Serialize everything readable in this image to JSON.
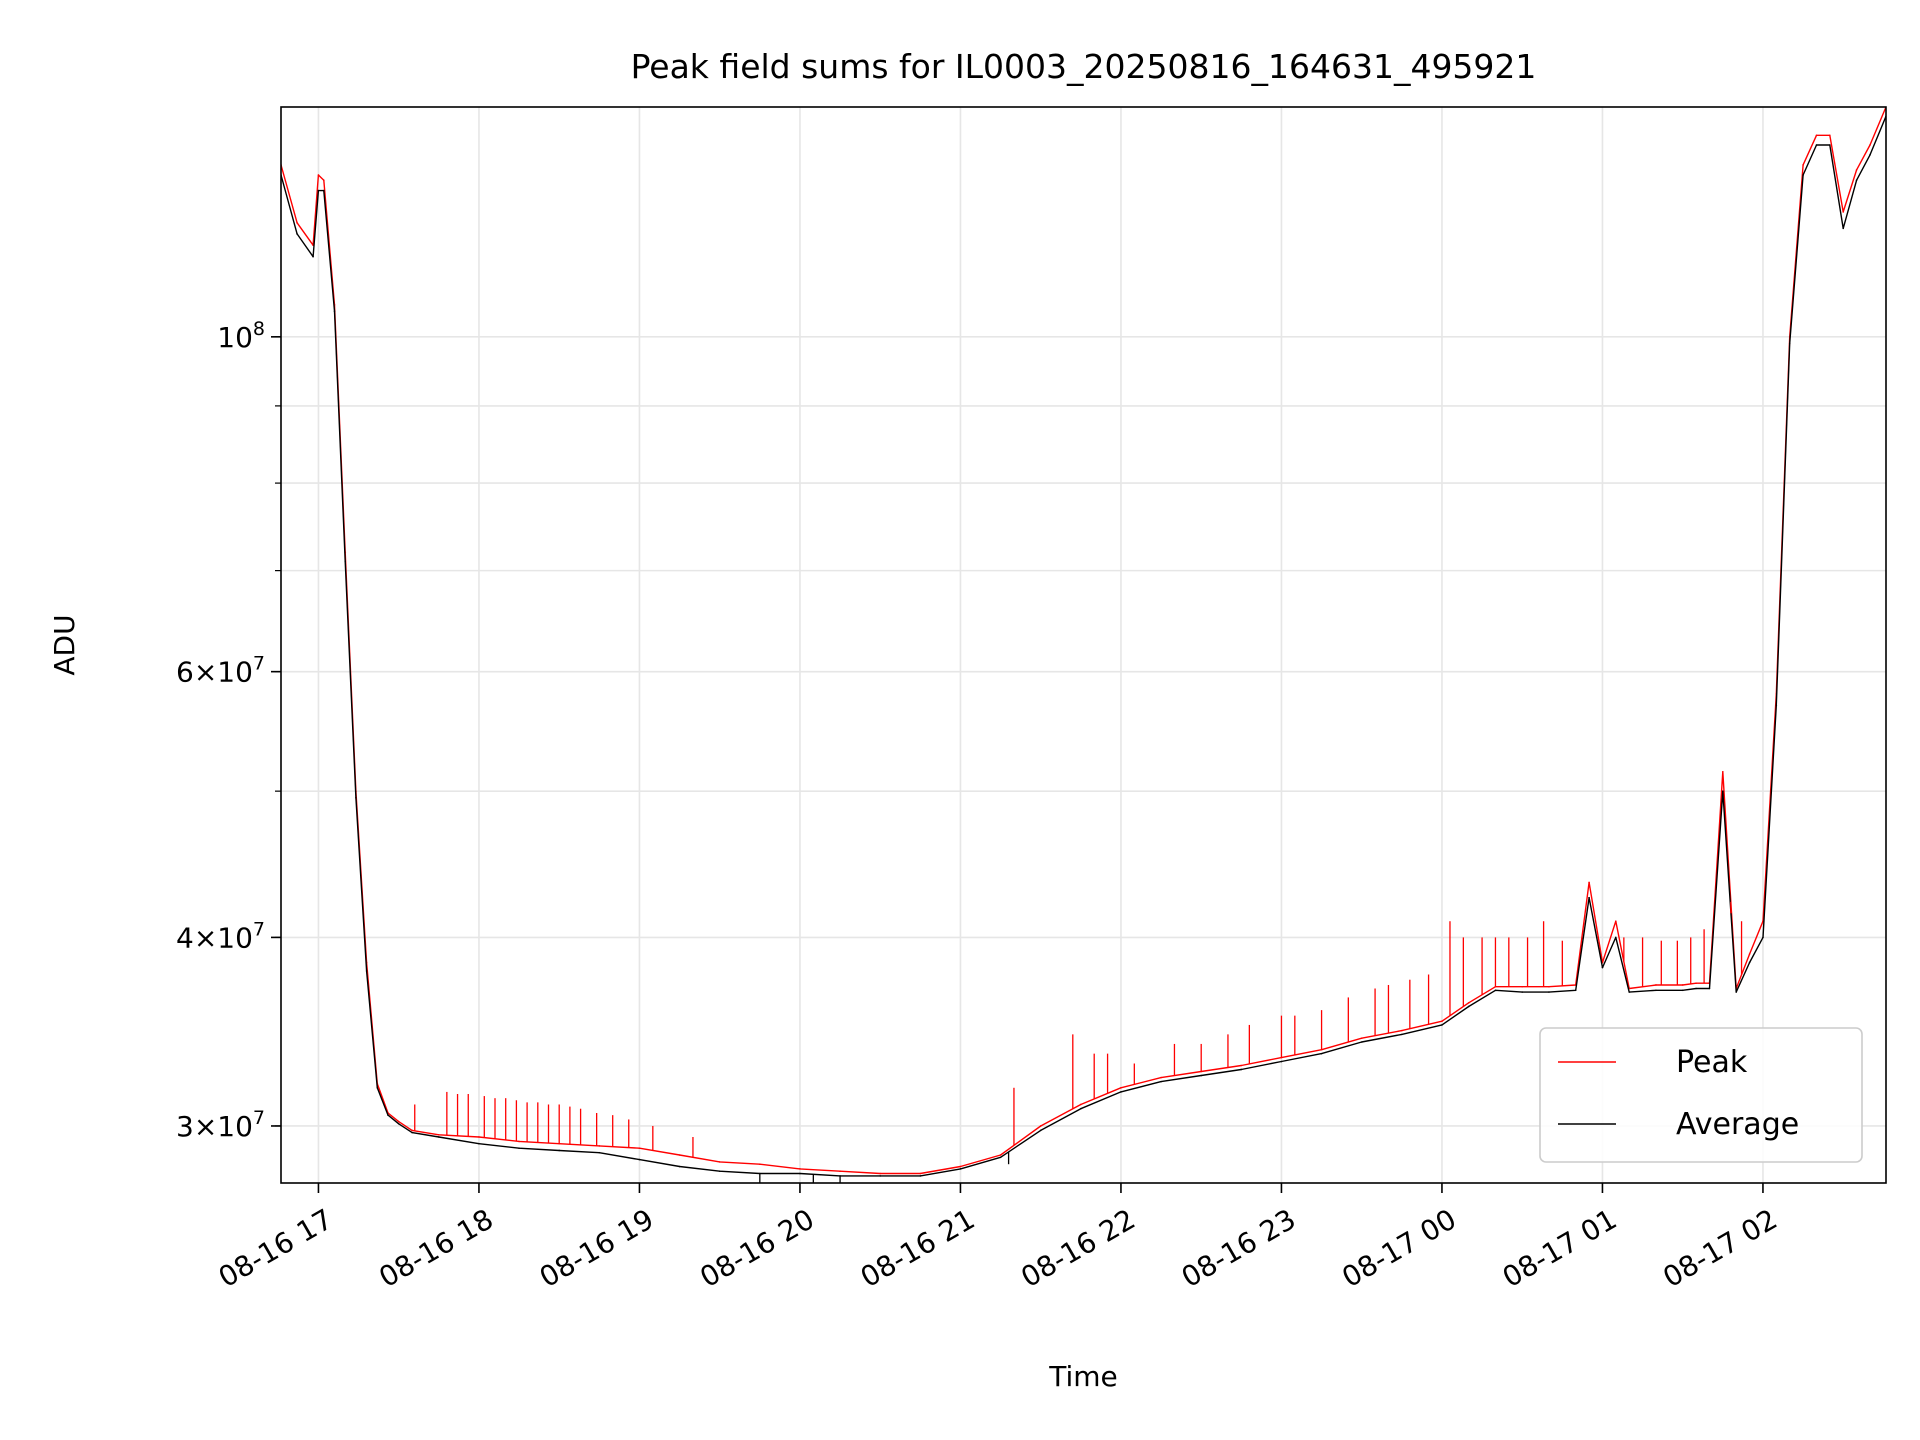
{
  "chart_data": {
    "type": "line",
    "title": "Peak field sums for IL0003_20250816_164631_495921",
    "xlabel": "Time",
    "ylabel": "ADU",
    "xlim": [
      "08-16 16:46",
      "08-17 02:46"
    ],
    "ylim": [
      27500000,
      142000000
    ],
    "yscale": "log",
    "grid": true,
    "legend_position": "lower right",
    "x_tick_labels": [
      "08-16 17",
      "08-16 18",
      "08-16 19",
      "08-16 20",
      "08-16 21",
      "08-16 22",
      "08-16 23",
      "08-17 00",
      "08-17 01",
      "08-17 02"
    ],
    "y_tick_labels": [
      {
        "value": 30000000,
        "mantissa": "3",
        "exponent": "7"
      },
      {
        "value": 40000000,
        "mantissa": "4",
        "exponent": "7"
      },
      {
        "value": 60000000,
        "mantissa": "6",
        "exponent": "7"
      },
      {
        "value": 100000000,
        "mantissa": "",
        "exponent": "8"
      }
    ],
    "x": [
      "08-16 16:46",
      "08-16 16:52",
      "08-16 16:58",
      "08-16 17:00",
      "08-16 17:02",
      "08-16 17:06",
      "08-16 17:10",
      "08-16 17:14",
      "08-16 17:18",
      "08-16 17:22",
      "08-16 17:26",
      "08-16 17:30",
      "08-16 17:35",
      "08-16 17:45",
      "08-16 18:00",
      "08-16 18:15",
      "08-16 18:30",
      "08-16 18:45",
      "08-16 19:00",
      "08-16 19:15",
      "08-16 19:30",
      "08-16 19:45",
      "08-16 20:00",
      "08-16 20:15",
      "08-16 20:30",
      "08-16 20:45",
      "08-16 21:00",
      "08-16 21:15",
      "08-16 21:30",
      "08-16 21:45",
      "08-16 22:00",
      "08-16 22:15",
      "08-16 22:30",
      "08-16 22:45",
      "08-16 23:00",
      "08-16 23:15",
      "08-16 23:30",
      "08-16 23:45",
      "08-17 00:00",
      "08-17 00:10",
      "08-17 00:20",
      "08-17 00:30",
      "08-17 00:40",
      "08-17 00:50",
      "08-17 00:55",
      "08-17 01:00",
      "08-17 01:05",
      "08-17 01:10",
      "08-17 01:20",
      "08-17 01:30",
      "08-17 01:35",
      "08-17 01:40",
      "08-17 01:45",
      "08-17 01:50",
      "08-17 01:55",
      "08-17 02:00",
      "08-17 02:05",
      "08-17 02:10",
      "08-17 02:15",
      "08-17 02:20",
      "08-17 02:25",
      "08-17 02:30",
      "08-17 02:35",
      "08-17 02:40",
      "08-17 02:46"
    ],
    "series": [
      {
        "name": "Peak",
        "color": "#ff0000",
        "values": [
          130000000,
          119000000,
          115000000,
          128000000,
          127000000,
          105000000,
          72000000,
          50000000,
          38500000,
          32000000,
          30600000,
          30200000,
          29800000,
          29600000,
          29500000,
          29300000,
          29200000,
          29100000,
          29000000,
          28700000,
          28400000,
          28300000,
          28100000,
          28000000,
          27900000,
          27900000,
          28200000,
          28700000,
          30000000,
          31000000,
          31800000,
          32300000,
          32600000,
          32900000,
          33300000,
          33700000,
          34300000,
          34700000,
          35200000,
          36200000,
          37100000,
          37100000,
          37100000,
          37200000,
          43500000,
          38500000,
          41000000,
          37000000,
          37200000,
          37200000,
          37300000,
          37300000,
          51500000,
          37000000,
          39000000,
          41000000,
          58000000,
          100000000,
          130000000,
          136000000,
          136000000,
          121000000,
          129000000,
          134000000,
          142000000
        ]
      },
      {
        "name": "Average",
        "color": "#000000",
        "values": [
          128000000,
          117000000,
          113000000,
          125000000,
          125000000,
          104000000,
          71000000,
          49500000,
          38000000,
          31800000,
          30500000,
          30100000,
          29700000,
          29500000,
          29200000,
          29000000,
          28900000,
          28800000,
          28500000,
          28200000,
          28000000,
          27900000,
          27900000,
          27800000,
          27800000,
          27800000,
          28100000,
          28600000,
          29800000,
          30800000,
          31600000,
          32100000,
          32400000,
          32700000,
          33100000,
          33500000,
          34100000,
          34500000,
          35000000,
          36000000,
          36900000,
          36800000,
          36800000,
          36900000,
          42500000,
          38200000,
          40000000,
          36800000,
          36900000,
          36900000,
          37000000,
          37000000,
          50000000,
          36800000,
          38500000,
          40000000,
          57000000,
          99000000,
          128000000,
          134000000,
          134000000,
          118000000,
          127000000,
          132000000,
          140000000
        ]
      }
    ],
    "spikes": [
      {
        "series": "Peak",
        "x": [
          "08-16 17:36",
          "08-16 17:48",
          "08-16 17:52",
          "08-16 17:56",
          "08-16 18:02",
          "08-16 18:06",
          "08-16 18:10",
          "08-16 18:14",
          "08-16 18:18",
          "08-16 18:22",
          "08-16 18:26",
          "08-16 18:30",
          "08-16 18:34",
          "08-16 18:38",
          "08-16 18:44",
          "08-16 18:50",
          "08-16 18:56",
          "08-16 19:05",
          "08-16 19:20",
          "08-16 21:20",
          "08-16 21:42",
          "08-16 21:50",
          "08-16 21:55",
          "08-16 22:05",
          "08-16 22:20",
          "08-16 22:30",
          "08-16 22:40",
          "08-16 22:48",
          "08-16 23:00",
          "08-16 23:05",
          "08-16 23:15",
          "08-16 23:25",
          "08-16 23:35",
          "08-16 23:40",
          "08-16 23:48",
          "08-16 23:55",
          "08-17 00:03",
          "08-17 00:08",
          "08-17 00:15",
          "08-17 00:20",
          "08-17 00:25",
          "08-17 00:32",
          "08-17 00:38",
          "08-17 00:45",
          "08-17 01:08",
          "08-17 01:15",
          "08-17 01:22",
          "08-17 01:28",
          "08-17 01:33",
          "08-17 01:38",
          "08-17 01:48",
          "08-17 01:52"
        ],
        "values": [
          31000000,
          31600000,
          31500000,
          31500000,
          31400000,
          31300000,
          31300000,
          31200000,
          31100000,
          31100000,
          31000000,
          31000000,
          30900000,
          30800000,
          30600000,
          30500000,
          30300000,
          30000000,
          29500000,
          31800000,
          34500000,
          33500000,
          33500000,
          33000000,
          34000000,
          34000000,
          34500000,
          35000000,
          35500000,
          35500000,
          35800000,
          36500000,
          37000000,
          37200000,
          37500000,
          37800000,
          41000000,
          40000000,
          40000000,
          40000000,
          40000000,
          40000000,
          41000000,
          39800000,
          40000000,
          40000000,
          39800000,
          39800000,
          40000000,
          40500000,
          41500000,
          41000000
        ]
      },
      {
        "series": "Average",
        "x": [
          "08-16 19:45",
          "08-16 20:05",
          "08-16 20:15",
          "08-16 21:18"
        ],
        "values": [
          27500000,
          27500000,
          27500000,
          28300000
        ]
      }
    ]
  }
}
